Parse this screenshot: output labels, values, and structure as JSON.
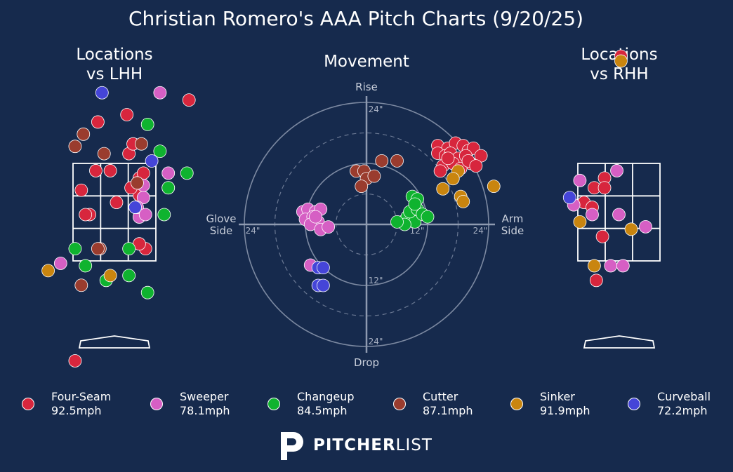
{
  "title": "Christian Romero's AAA Pitch Charts (9/20/25)",
  "panels": {
    "lhh_title_line1": "Locations",
    "lhh_title_line2": "vs LHH",
    "movement_title": "Movement",
    "rhh_title_line1": "Locations",
    "rhh_title_line2": "vs RHH"
  },
  "movement_axes": {
    "top": "Rise",
    "bottom": "Drop",
    "left_line1": "Glove",
    "left_line2": "Side",
    "right_line1": "Arm",
    "right_line2": "Side",
    "ring_label_top_24": "24\"",
    "ring_label_bottom_12": "12\"",
    "ring_label_bottom_24": "24\"",
    "ring_label_left_24": "24\"",
    "ring_label_right_12": "12\"",
    "ring_label_right_24": "24\""
  },
  "legend": [
    {
      "pitch": "Four-Seam",
      "speed": "92.5mph",
      "color": "#d7263d"
    },
    {
      "pitch": "Sweeper",
      "speed": "78.1mph",
      "color": "#d65fc4"
    },
    {
      "pitch": "Changeup",
      "speed": "84.5mph",
      "color": "#0fb32f"
    },
    {
      "pitch": "Cutter",
      "speed": "87.1mph",
      "color": "#9a3c2e"
    },
    {
      "pitch": "Sinker",
      "speed": "91.9mph",
      "color": "#c9850f"
    },
    {
      "pitch": "Curveball",
      "speed": "72.2mph",
      "color": "#4545d8"
    }
  ],
  "logo": {
    "bold": "PITCHER",
    "light": "LIST",
    "icon": "pitcherlist-p-icon"
  },
  "chart_data": [
    {
      "type": "scatter",
      "name": "locations-vs-lhh",
      "axes": "horizontal and vertical location, strike-zone units (-1 to 1 = zone edges)",
      "points": [
        {
          "pitch": "Four-Seam",
          "x": [
            -0.4,
            0.3,
            0.6,
            -0.45,
            -0.1,
            -0.8,
            -0.6,
            -0.7,
            0.05,
            0.4,
            0.6,
            0.75,
            0.35,
            1.8,
            -0.95,
            0.45,
            0.7,
            0.6
          ],
          "y": [
            1.85,
            2.0,
            0.35,
            0.85,
            0.85,
            0.45,
            -0.05,
            -0.05,
            0.2,
            0.5,
            0.7,
            -0.75,
            1.2,
            2.3,
            -3.05,
            1.4,
            0.8,
            -0.65
          ]
        },
        {
          "pitch": "Sweeper",
          "x": [
            1.1,
            1.3,
            0.7,
            0.7,
            0.6,
            0.55,
            1.3,
            -1.3,
            0.75
          ],
          "y": [
            2.45,
            0.8,
            0.3,
            0.55,
            -0.1,
            0.1,
            0.5,
            -1.05,
            -0.05
          ]
        },
        {
          "pitch": "Changeup",
          "x": [
            0.8,
            1.1,
            1.3,
            1.75,
            1.2,
            0.35,
            -0.7,
            -0.2,
            0.35,
            -0.95,
            0.8
          ],
          "y": [
            1.8,
            1.25,
            0.5,
            0.8,
            -0.05,
            -1.3,
            -1.1,
            -1.4,
            -0.75,
            -0.75,
            -1.65
          ]
        },
        {
          "pitch": "Cutter",
          "x": [
            -0.75,
            -0.95,
            -0.25,
            0.55,
            -0.35,
            0.65,
            -0.4,
            -0.8
          ],
          "y": [
            1.6,
            1.35,
            1.2,
            0.6,
            -0.75,
            1.4,
            -0.75,
            -1.5
          ]
        },
        {
          "pitch": "Sinker",
          "x": [
            -1.6,
            -0.1
          ],
          "y": [
            -1.2,
            -1.3
          ]
        },
        {
          "pitch": "Curveball",
          "x": [
            -0.3,
            0.9,
            0.5
          ],
          "y": [
            2.45,
            1.05,
            0.1
          ]
        }
      ]
    },
    {
      "type": "scatter",
      "name": "movement",
      "axes": "horizontal break (arm side +, inches) vs induced vertical break (inches)",
      "rings_inches": [
        6,
        12,
        18,
        24
      ],
      "series": [
        {
          "name": "Four-Seam",
          "x": [
            14,
            16,
            17.5,
            19,
            20,
            21,
            22.5,
            14,
            15.5,
            16.5,
            18,
            19.5,
            20.5,
            15,
            17,
            18.5,
            20,
            21.5,
            14.5,
            16
          ],
          "y": [
            15.5,
            15,
            16,
            15.5,
            14.5,
            15,
            13.5,
            14,
            13.5,
            14,
            13,
            13.5,
            12,
            11.5,
            12,
            11,
            12.5,
            11.5,
            10.5,
            13
          ]
        },
        {
          "name": "Sweeper",
          "x": [
            -12.5,
            -11.5,
            -10,
            -9,
            -12,
            -10.5,
            -9.5,
            -11,
            -9,
            -7.5,
            -10,
            -11
          ],
          "y": [
            2.5,
            3,
            2.5,
            3,
            1,
            1.5,
            0.5,
            0,
            -1,
            -0.5,
            1.5,
            -8
          ]
        },
        {
          "name": "Changeup",
          "x": [
            7,
            8,
            9.5,
            8.5,
            9,
            10,
            11,
            12,
            10,
            7.5,
            6,
            9.5
          ],
          "y": [
            0.5,
            1.5,
            0.5,
            2.5,
            5.5,
            3,
            2,
            1.5,
            5,
            0,
            0.5,
            4
          ]
        },
        {
          "name": "Cutter",
          "x": [
            -2,
            -0.5,
            0,
            1.5,
            3,
            6,
            -1
          ],
          "y": [
            10.5,
            10.5,
            9,
            9.5,
            12.5,
            12.5,
            7.5
          ]
        },
        {
          "name": "Sinker",
          "x": [
            18,
            17,
            15,
            18.5,
            25,
            19
          ],
          "y": [
            10.5,
            9,
            7,
            5.5,
            7.5,
            4.5
          ]
        },
        {
          "name": "Curveball",
          "x": [
            -9.5,
            -8.5,
            -9.5,
            -8.5
          ],
          "y": [
            -8.5,
            -8.5,
            -12,
            -12
          ]
        }
      ]
    },
    {
      "type": "scatter",
      "name": "locations-vs-rhh",
      "axes": "horizontal and vertical location, strike-zone units (-1 to 1 = zone edges)",
      "points": [
        {
          "pitch": "Four-Seam",
          "x": [
            0.05,
            -0.35,
            -0.6,
            -0.35,
            -0.85,
            -0.65,
            -0.4,
            -0.55
          ],
          "y": [
            3.2,
            0.7,
            0.5,
            0.5,
            0.2,
            0.1,
            -0.5,
            -1.4
          ]
        },
        {
          "pitch": "Sweeper",
          "x": [
            -0.95,
            -0.05,
            -1.1,
            -0.65,
            0,
            0.65,
            -0.2,
            0.1
          ],
          "y": [
            0.65,
            0.85,
            0.15,
            -0.05,
            -0.05,
            -0.3,
            -1.1,
            -1.1
          ]
        },
        {
          "pitch": "Sinker",
          "x": [
            0.05,
            -0.95,
            0.3,
            -0.6
          ],
          "y": [
            3.1,
            -0.2,
            -0.35,
            -1.1
          ]
        },
        {
          "pitch": "Curveball",
          "x": [
            -1.2
          ],
          "y": [
            0.3
          ]
        }
      ]
    }
  ]
}
